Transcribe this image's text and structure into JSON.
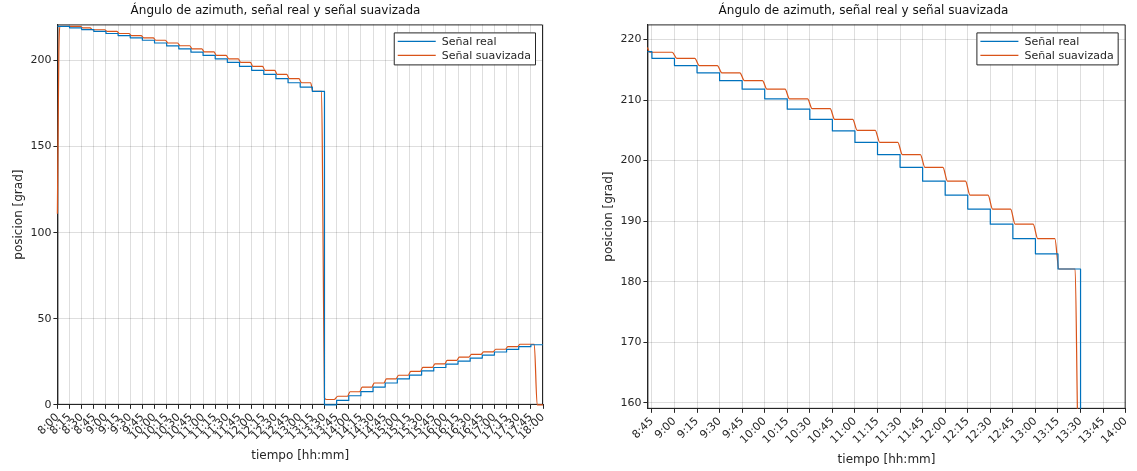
{
  "chart_data": [
    {
      "type": "line",
      "title": "Ángulo de azimuth, señal real y señal suavizada",
      "xlabel": "tiempo [hh:mm]",
      "ylabel": "posicion [grad]",
      "xlim": [
        8,
        18
      ],
      "xticks": [
        {
          "value": 8,
          "label": "8:00"
        },
        {
          "value": 8.25,
          "label": "8:15"
        },
        {
          "value": 8.5,
          "label": "8:30"
        },
        {
          "value": 8.75,
          "label": "8:45"
        },
        {
          "value": 9,
          "label": "9:00"
        },
        {
          "value": 9.25,
          "label": "9:15"
        },
        {
          "value": 9.5,
          "label": "9:30"
        },
        {
          "value": 9.75,
          "label": "9:45"
        },
        {
          "value": 10,
          "label": "10:00"
        },
        {
          "value": 10.25,
          "label": "10:15"
        },
        {
          "value": 10.5,
          "label": "10:30"
        },
        {
          "value": 10.75,
          "label": "10:45"
        },
        {
          "value": 11,
          "label": "11:00"
        },
        {
          "value": 11.25,
          "label": "11:15"
        },
        {
          "value": 11.5,
          "label": "11:30"
        },
        {
          "value": 11.75,
          "label": "11:45"
        },
        {
          "value": 12,
          "label": "12:00"
        },
        {
          "value": 12.25,
          "label": "12:15"
        },
        {
          "value": 12.5,
          "label": "12:30"
        },
        {
          "value": 12.75,
          "label": "12:45"
        },
        {
          "value": 13,
          "label": "13:00"
        },
        {
          "value": 13.25,
          "label": "13:15"
        },
        {
          "value": 13.5,
          "label": "13:30"
        },
        {
          "value": 13.75,
          "label": "13:45"
        },
        {
          "value": 14,
          "label": "14:00"
        },
        {
          "value": 14.25,
          "label": "14:15"
        },
        {
          "value": 14.5,
          "label": "14:30"
        },
        {
          "value": 14.75,
          "label": "14:45"
        },
        {
          "value": 15,
          "label": "15:00"
        },
        {
          "value": 15.25,
          "label": "15:15"
        },
        {
          "value": 15.5,
          "label": "15:30"
        },
        {
          "value": 15.75,
          "label": "15:45"
        },
        {
          "value": 16,
          "label": "16:00"
        },
        {
          "value": 16.25,
          "label": "16:15"
        },
        {
          "value": 16.5,
          "label": "16:30"
        },
        {
          "value": 16.75,
          "label": "16:45"
        },
        {
          "value": 17,
          "label": "17:00"
        },
        {
          "value": 17.25,
          "label": "17:15"
        },
        {
          "value": 17.5,
          "label": "17:30"
        },
        {
          "value": 17.75,
          "label": "17:45"
        },
        {
          "value": 18,
          "label": "18:00"
        }
      ],
      "ylim": [
        0,
        221
      ],
      "yticks": [
        0,
        50,
        100,
        150,
        200
      ],
      "grid": true,
      "legend": "top right",
      "series": [
        {
          "name": "Señal real",
          "color": "#0072bd",
          "type": "step",
          "x": [
            8,
            8.25,
            8.5,
            8.75,
            9,
            9.25,
            9.5,
            9.75,
            10,
            10.25,
            10.5,
            10.75,
            11,
            11.25,
            11.5,
            11.75,
            12,
            12.25,
            12.5,
            12.75,
            13,
            13.25,
            13.5,
            13.75,
            14,
            14.25,
            14.5,
            14.75,
            15,
            15.25,
            15.5,
            15.75,
            16,
            16.25,
            16.5,
            16.75,
            17,
            17.25,
            17.5,
            17.75,
            18
          ],
          "values": [
            219.8,
            219.0,
            218.0,
            216.9,
            215.7,
            214.5,
            213.2,
            211.8,
            210.2,
            208.5,
            206.8,
            204.9,
            203.0,
            201.0,
            198.9,
            196.6,
            194.3,
            192.0,
            189.5,
            187.1,
            184.6,
            182.1,
            0,
            2.6,
            5.3,
            7.7,
            10.3,
            12.7,
            15.1,
            17.3,
            19.7,
            21.7,
            23.7,
            25.4,
            27.2,
            28.9,
            30.7,
            32.2,
            33.8,
            34.9,
            34.9
          ]
        },
        {
          "name": "Señal suavizada",
          "color": "#d95319",
          "x": [
            8,
            8.03,
            8.06,
            8.225,
            8.275,
            8.475,
            8.525,
            8.675,
            8.725,
            8.975,
            9.025,
            9.225,
            9.275,
            9.475,
            9.525,
            9.725,
            9.775,
            9.975,
            10.025,
            10.225,
            10.275,
            10.475,
            10.525,
            10.725,
            10.775,
            10.975,
            11.025,
            11.225,
            11.275,
            11.475,
            11.525,
            11.725,
            11.775,
            11.975,
            12.025,
            12.225,
            12.275,
            12.475,
            12.525,
            12.725,
            12.775,
            12.975,
            13.025,
            13.215,
            13.26,
            13.44,
            13.47,
            13.5,
            13.55,
            13.7,
            13.775,
            13.975,
            14.025,
            14.225,
            14.275,
            14.475,
            14.525,
            14.725,
            14.775,
            14.975,
            15.025,
            15.225,
            15.275,
            15.475,
            15.525,
            15.725,
            15.775,
            15.975,
            16.025,
            16.225,
            16.275,
            16.475,
            16.525,
            16.725,
            16.775,
            16.975,
            17.025,
            17.225,
            17.275,
            17.475,
            17.525,
            17.82,
            17.88,
            18
          ],
          "values": [
            111,
            205,
            219.9,
            219.9,
            219.8,
            219.8,
            219.0,
            219.0,
            217.9,
            217.9,
            216.9,
            216.9,
            215.7,
            215.7,
            214.5,
            214.5,
            213.2,
            213.2,
            211.8,
            211.8,
            210.2,
            210.2,
            208.6,
            208.6,
            206.8,
            206.8,
            205.0,
            205.0,
            203.0,
            203.0,
            201.0,
            201.0,
            198.9,
            198.9,
            196.6,
            196.6,
            194.3,
            194.3,
            192.0,
            192.0,
            189.5,
            189.5,
            187.1,
            187.1,
            182.1,
            182.1,
            100,
            4,
            3.1,
            3.1,
            5.0,
            5.0,
            7.6,
            7.6,
            10.3,
            10.3,
            12.7,
            12.7,
            15.1,
            15.1,
            17.2,
            17.2,
            19.4,
            19.4,
            21.8,
            21.8,
            23.8,
            23.8,
            25.8,
            25.8,
            27.7,
            27.7,
            29.3,
            29.3,
            30.8,
            30.8,
            32.3,
            32.3,
            33.8,
            33.8,
            35.2,
            35.2,
            0,
            0
          ]
        }
      ]
    },
    {
      "type": "line",
      "title": "Ángulo de azimuth, señal real y señal suavizada",
      "xlabel": "tiempo [hh:mm]",
      "ylabel": "posicion [grad]",
      "xlim": [
        8.7,
        14
      ],
      "xticks": [
        {
          "value": 8.75,
          "label": "8:45"
        },
        {
          "value": 9,
          "label": "9:00"
        },
        {
          "value": 9.25,
          "label": "9:15"
        },
        {
          "value": 9.5,
          "label": "9:30"
        },
        {
          "value": 9.75,
          "label": "9:45"
        },
        {
          "value": 10,
          "label": "10:00"
        },
        {
          "value": 10.25,
          "label": "10:15"
        },
        {
          "value": 10.5,
          "label": "10:30"
        },
        {
          "value": 10.75,
          "label": "10:45"
        },
        {
          "value": 11,
          "label": "11:00"
        },
        {
          "value": 11.25,
          "label": "11:15"
        },
        {
          "value": 11.5,
          "label": "11:30"
        },
        {
          "value": 11.75,
          "label": "11:45"
        },
        {
          "value": 12,
          "label": "12:00"
        },
        {
          "value": 12.25,
          "label": "12:15"
        },
        {
          "value": 12.5,
          "label": "12:30"
        },
        {
          "value": 12.75,
          "label": "12:45"
        },
        {
          "value": 13,
          "label": "13:00"
        },
        {
          "value": 13.25,
          "label": "13:15"
        },
        {
          "value": 13.5,
          "label": "13:30"
        },
        {
          "value": 13.75,
          "label": "13:45"
        },
        {
          "value": 14,
          "label": "14:00"
        }
      ],
      "ylim": [
        159,
        222.5
      ],
      "yticks": [
        160,
        170,
        180,
        190,
        200,
        210,
        220
      ],
      "grid": true,
      "legend": "top right",
      "series": [
        {
          "name": "Señal real",
          "color": "#0072bd",
          "type": "step",
          "x": [
            8.7,
            8.75,
            9,
            9.25,
            9.5,
            9.75,
            10,
            10.25,
            10.5,
            10.75,
            11,
            11.25,
            11.5,
            11.75,
            12,
            12.25,
            12.5,
            12.75,
            13,
            13.25,
            13.5
          ],
          "values": [
            218.0,
            216.9,
            215.7,
            214.5,
            213.2,
            211.8,
            210.2,
            208.5,
            206.8,
            204.9,
            203.0,
            201.0,
            198.9,
            196.6,
            194.3,
            192.0,
            189.5,
            187.1,
            184.6,
            182.1,
            159
          ]
        },
        {
          "name": "Señal suavizada",
          "color": "#d95319",
          "x": [
            8.7,
            8.725,
            8.975,
            9.025,
            9.225,
            9.275,
            9.475,
            9.525,
            9.725,
            9.775,
            9.975,
            10.025,
            10.225,
            10.275,
            10.475,
            10.525,
            10.725,
            10.775,
            10.975,
            11.025,
            11.225,
            11.275,
            11.475,
            11.525,
            11.725,
            11.775,
            11.975,
            12.025,
            12.225,
            12.275,
            12.475,
            12.525,
            12.725,
            12.775,
            12.975,
            13.025,
            13.215,
            13.26,
            13.44,
            13.465
          ],
          "values": [
            218.7,
            217.9,
            217.9,
            216.9,
            216.9,
            215.7,
            215.7,
            214.5,
            214.5,
            213.2,
            213.2,
            211.8,
            211.8,
            210.2,
            210.2,
            208.6,
            208.6,
            206.8,
            206.8,
            205.0,
            205.0,
            203.0,
            203.0,
            201.0,
            201.0,
            198.9,
            198.9,
            196.6,
            196.6,
            194.3,
            194.3,
            192.0,
            192.0,
            189.5,
            189.5,
            187.1,
            187.1,
            182.1,
            182.1,
            159
          ]
        }
      ]
    }
  ]
}
